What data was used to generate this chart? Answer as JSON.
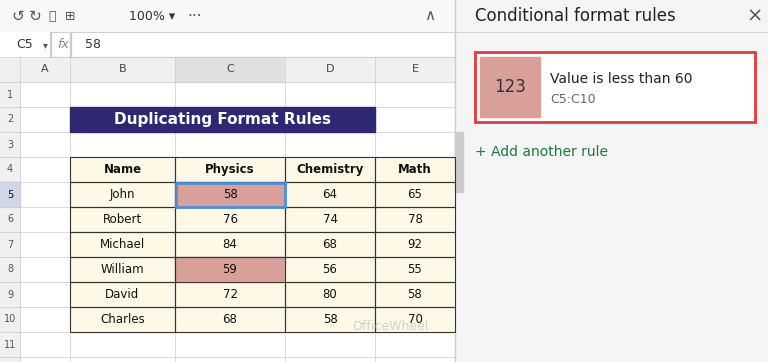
{
  "title": "Duplicating Format Rules",
  "title_bg": "#2e2874",
  "title_color": "#ffffff",
  "header_row": [
    "Name",
    "Physics",
    "Chemistry",
    "Math"
  ],
  "table_data": [
    [
      "John",
      58,
      64,
      65
    ],
    [
      "Robert",
      76,
      74,
      78
    ],
    [
      "Michael",
      84,
      68,
      92
    ],
    [
      "William",
      59,
      56,
      55
    ],
    [
      "David",
      72,
      80,
      58
    ],
    [
      "Charles",
      68,
      58,
      70
    ]
  ],
  "highlight_color": "#d9a09a",
  "header_bg": "#fef9e7",
  "cell_bg": "#fef9e7",
  "cell_bg_normal": "#ffffff",
  "table_border": "#333333",
  "selected_cell_border": "#4a90d9",
  "spreadsheet_bg": "#ffffff",
  "toolbar_bg": "#f8f8f8",
  "row_header_bg": "#f0f0f0",
  "col_header_bg": "#f0f0f0",
  "col_letters": [
    "A",
    "B",
    "C",
    "D",
    "E"
  ],
  "row_numbers": [
    "1",
    "2",
    "3",
    "4",
    "5",
    "6",
    "7",
    "8",
    "9",
    "10",
    "11"
  ],
  "cell_ref": "C5",
  "fx_value": "58",
  "panel_title": "Conditional format rules",
  "rule_text_line1": "Value is less than 60",
  "rule_text_line2": "C5:C10",
  "add_rule_text": "+ Add another rule",
  "add_rule_color": "#1a7a3c",
  "panel_preview_text": "123",
  "panel_preview_bg": "#d9a09a",
  "panel_border_color": "#e53935",
  "watermark_text": "OfficeWheel",
  "zoom_label": "100%"
}
